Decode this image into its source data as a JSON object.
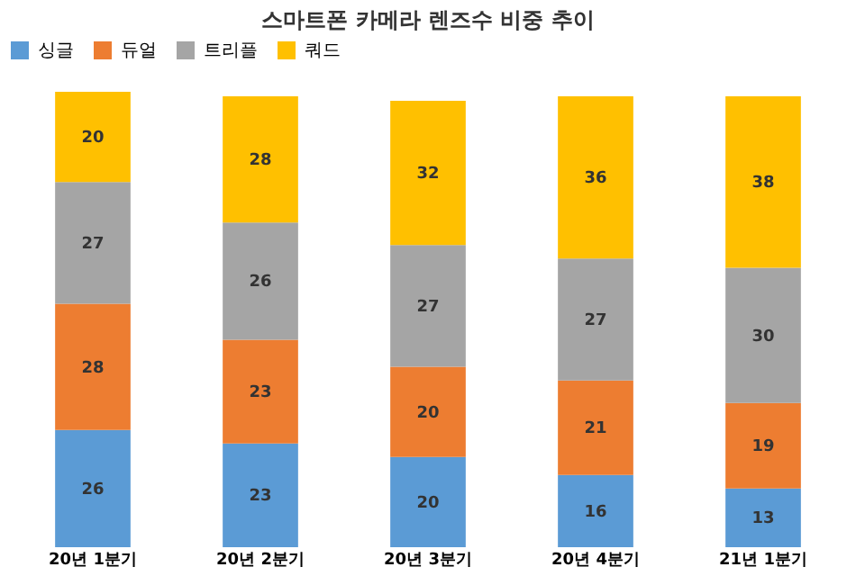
{
  "chart_data": {
    "type": "bar",
    "title": "스마트폰 카메라 렌즈수 비중 추이",
    "categories": [
      "20년 1분기",
      "20년 2분기",
      "20년 3분기",
      "20년 4분기",
      "21년 1분기"
    ],
    "stacked": true,
    "data_labels": true,
    "legend": "top",
    "tick_labels": "x",
    "ylim": [
      0,
      101
    ],
    "series": [
      {
        "name": "싱글",
        "color": "#5b9bd5",
        "values": [
          26,
          23,
          20,
          16,
          13
        ]
      },
      {
        "name": "듀얼",
        "color": "#ed7d31",
        "values": [
          28,
          23,
          20,
          21,
          19
        ]
      },
      {
        "name": "트리플",
        "color": "#a5a5a5",
        "values": [
          27,
          26,
          27,
          27,
          30
        ]
      },
      {
        "name": "쿼드",
        "color": "#ffc000",
        "values": [
          20,
          28,
          32,
          36,
          38
        ]
      }
    ]
  }
}
